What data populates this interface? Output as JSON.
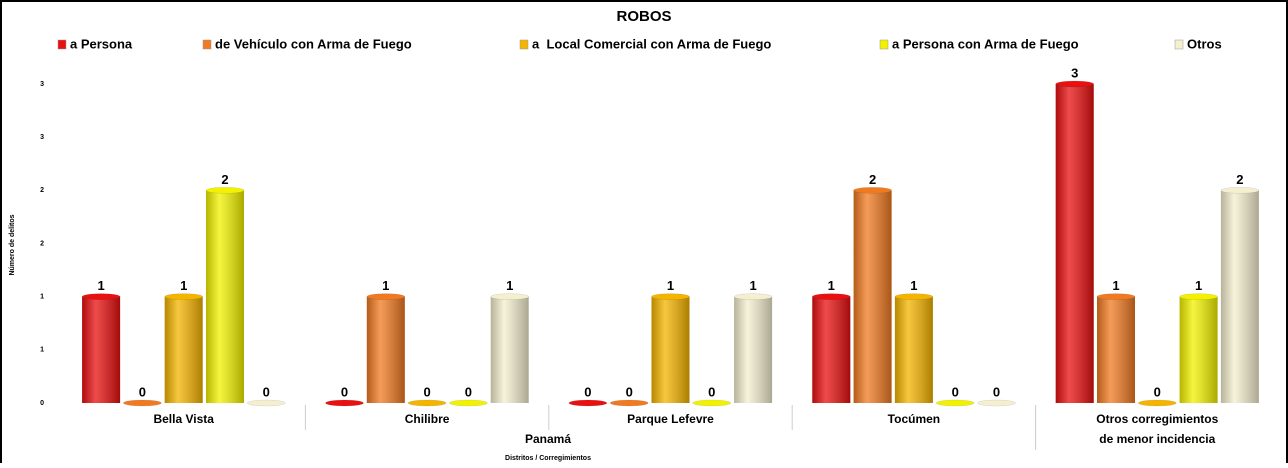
{
  "chart_data": {
    "type": "bar",
    "title": "ROBOS",
    "categories": [
      "Bella Vista",
      "Chilibre",
      "Parque Lefevre",
      "Tocúmen",
      "Otros corregimientos de menor incidencia"
    ],
    "group_label": "Panamá",
    "xlabel": "Distritos / Corregimientos",
    "ylabel": "Número de delitos",
    "series": [
      {
        "name": "a Persona",
        "color": "#e81010",
        "values": [
          1,
          0,
          0,
          1,
          3
        ]
      },
      {
        "name": "de Vehículo con Arma de Fuego",
        "color": "#f07a22",
        "values": [
          0,
          1,
          0,
          2,
          1
        ]
      },
      {
        "name": "a  Local Comercial con Arma de Fuego",
        "color": "#f5b400",
        "values": [
          1,
          0,
          1,
          1,
          0
        ]
      },
      {
        "name": "a Persona con Arma de Fuego",
        "color": "#f2f200",
        "values": [
          2,
          0,
          0,
          0,
          1
        ]
      },
      {
        "name": "Otros",
        "color": "#f4efcf",
        "values": [
          0,
          1,
          1,
          0,
          2
        ]
      }
    ],
    "ylim": [
      0,
      3
    ],
    "yticks": [
      0,
      {
        "value": 0.5,
        "label": "1"
      },
      1,
      {
        "value": 1.5,
        "label": "2"
      },
      2,
      {
        "value": 2.5,
        "label": "3"
      },
      3
    ]
  }
}
